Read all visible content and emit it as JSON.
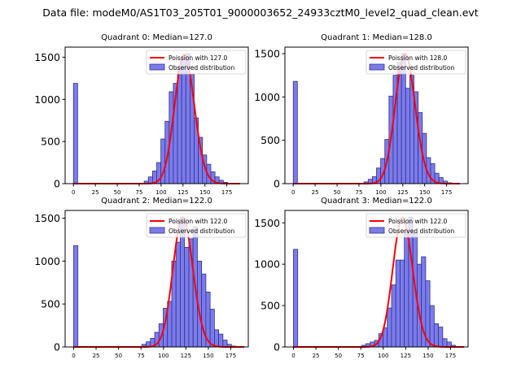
{
  "figure_title": "Data file: modeM0/AS1T03_205T01_9000003652_24933cztM0_level2_quad_clean.evt",
  "chart_data": [
    {
      "type": "bar",
      "title": "Quadrant 0: Median=127.0",
      "bin_start": 0,
      "bin_width": 4.75,
      "counts": [
        1190,
        0,
        0,
        0,
        0,
        0,
        0,
        0,
        0,
        0,
        0,
        0,
        0,
        0,
        0,
        0,
        0,
        30,
        80,
        150,
        250,
        530,
        740,
        1090,
        1190,
        1370,
        1500,
        1540,
        1300,
        780,
        550,
        340,
        230,
        140,
        80,
        40,
        15,
        5,
        2,
        0
      ],
      "poisson_lambda": 127.0,
      "poisson_peak": 1530,
      "legend": [
        "Poission with 127.0",
        "Observed distribution"
      ],
      "xlim": [
        -9.5,
        199.5
      ],
      "ylim": [
        0,
        1620
      ],
      "xticks": [
        0,
        25,
        50,
        75,
        100,
        125,
        150,
        175
      ],
      "yticks": [
        0,
        500,
        1000,
        1500
      ]
    },
    {
      "type": "bar",
      "title": "Quadrant 1: Median=128.0",
      "bin_start": 0,
      "bin_width": 4.75,
      "counts": [
        1180,
        0,
        0,
        0,
        0,
        0,
        0,
        0,
        0,
        0,
        0,
        0,
        0,
        0,
        0,
        0,
        0,
        20,
        50,
        80,
        180,
        290,
        510,
        1010,
        1250,
        1400,
        1500,
        1100,
        1250,
        1060,
        820,
        580,
        300,
        230,
        120,
        70,
        30,
        10,
        0,
        0
      ],
      "poisson_lambda": 128.0,
      "poisson_peak": 1500,
      "legend": [
        "Poission with 128.0",
        "Observed distribution"
      ],
      "xlim": [
        -9.5,
        199.5
      ],
      "ylim": [
        0,
        1575
      ],
      "xticks": [
        0,
        25,
        50,
        75,
        100,
        125,
        150,
        175
      ],
      "yticks": [
        0,
        500,
        1000,
        1500
      ]
    },
    {
      "type": "bar",
      "title": "Quadrant 2: Median=122.0",
      "bin_start": 0,
      "bin_width": 4.75,
      "counts": [
        1180,
        0,
        0,
        0,
        0,
        0,
        0,
        0,
        0,
        0,
        0,
        0,
        0,
        0,
        0,
        0,
        30,
        60,
        100,
        170,
        270,
        450,
        530,
        1000,
        1220,
        1500,
        1160,
        1260,
        1400,
        1000,
        850,
        640,
        440,
        200,
        150,
        80,
        30,
        10,
        0,
        0
      ],
      "poisson_lambda": 122.0,
      "poisson_peak": 1510,
      "legend": [
        "Poission with 122.0",
        "Observed distribution"
      ],
      "xlim": [
        -9.5,
        194.5
      ],
      "ylim": [
        0,
        1590
      ],
      "xticks": [
        0,
        25,
        50,
        75,
        100,
        125,
        150,
        175
      ],
      "yticks": [
        0,
        500,
        1000,
        1500
      ]
    },
    {
      "type": "bar",
      "title": "Quadrant 3: Median=122.0",
      "bin_start": 0,
      "bin_width": 4.75,
      "counts": [
        1180,
        0,
        0,
        0,
        0,
        0,
        0,
        0,
        0,
        0,
        0,
        0,
        0,
        0,
        0,
        0,
        20,
        40,
        60,
        80,
        160,
        230,
        470,
        750,
        1050,
        1050,
        1400,
        1570,
        1380,
        1000,
        1090,
        800,
        500,
        280,
        240,
        100,
        60,
        20,
        0,
        0
      ],
      "poisson_lambda": 122.0,
      "poisson_peak": 1560,
      "legend": [
        "Poission with 122.0",
        "Observed distribution"
      ],
      "xlim": [
        -9.5,
        194.5
      ],
      "ylim": [
        0,
        1650
      ],
      "xticks": [
        0,
        25,
        50,
        75,
        100,
        125,
        150,
        175
      ],
      "yticks": [
        0,
        500,
        1000,
        1500
      ]
    }
  ],
  "colors": {
    "bar_fill": "#7b7bf0",
    "bar_edge": "#33337a",
    "curve": "#ff0000"
  }
}
